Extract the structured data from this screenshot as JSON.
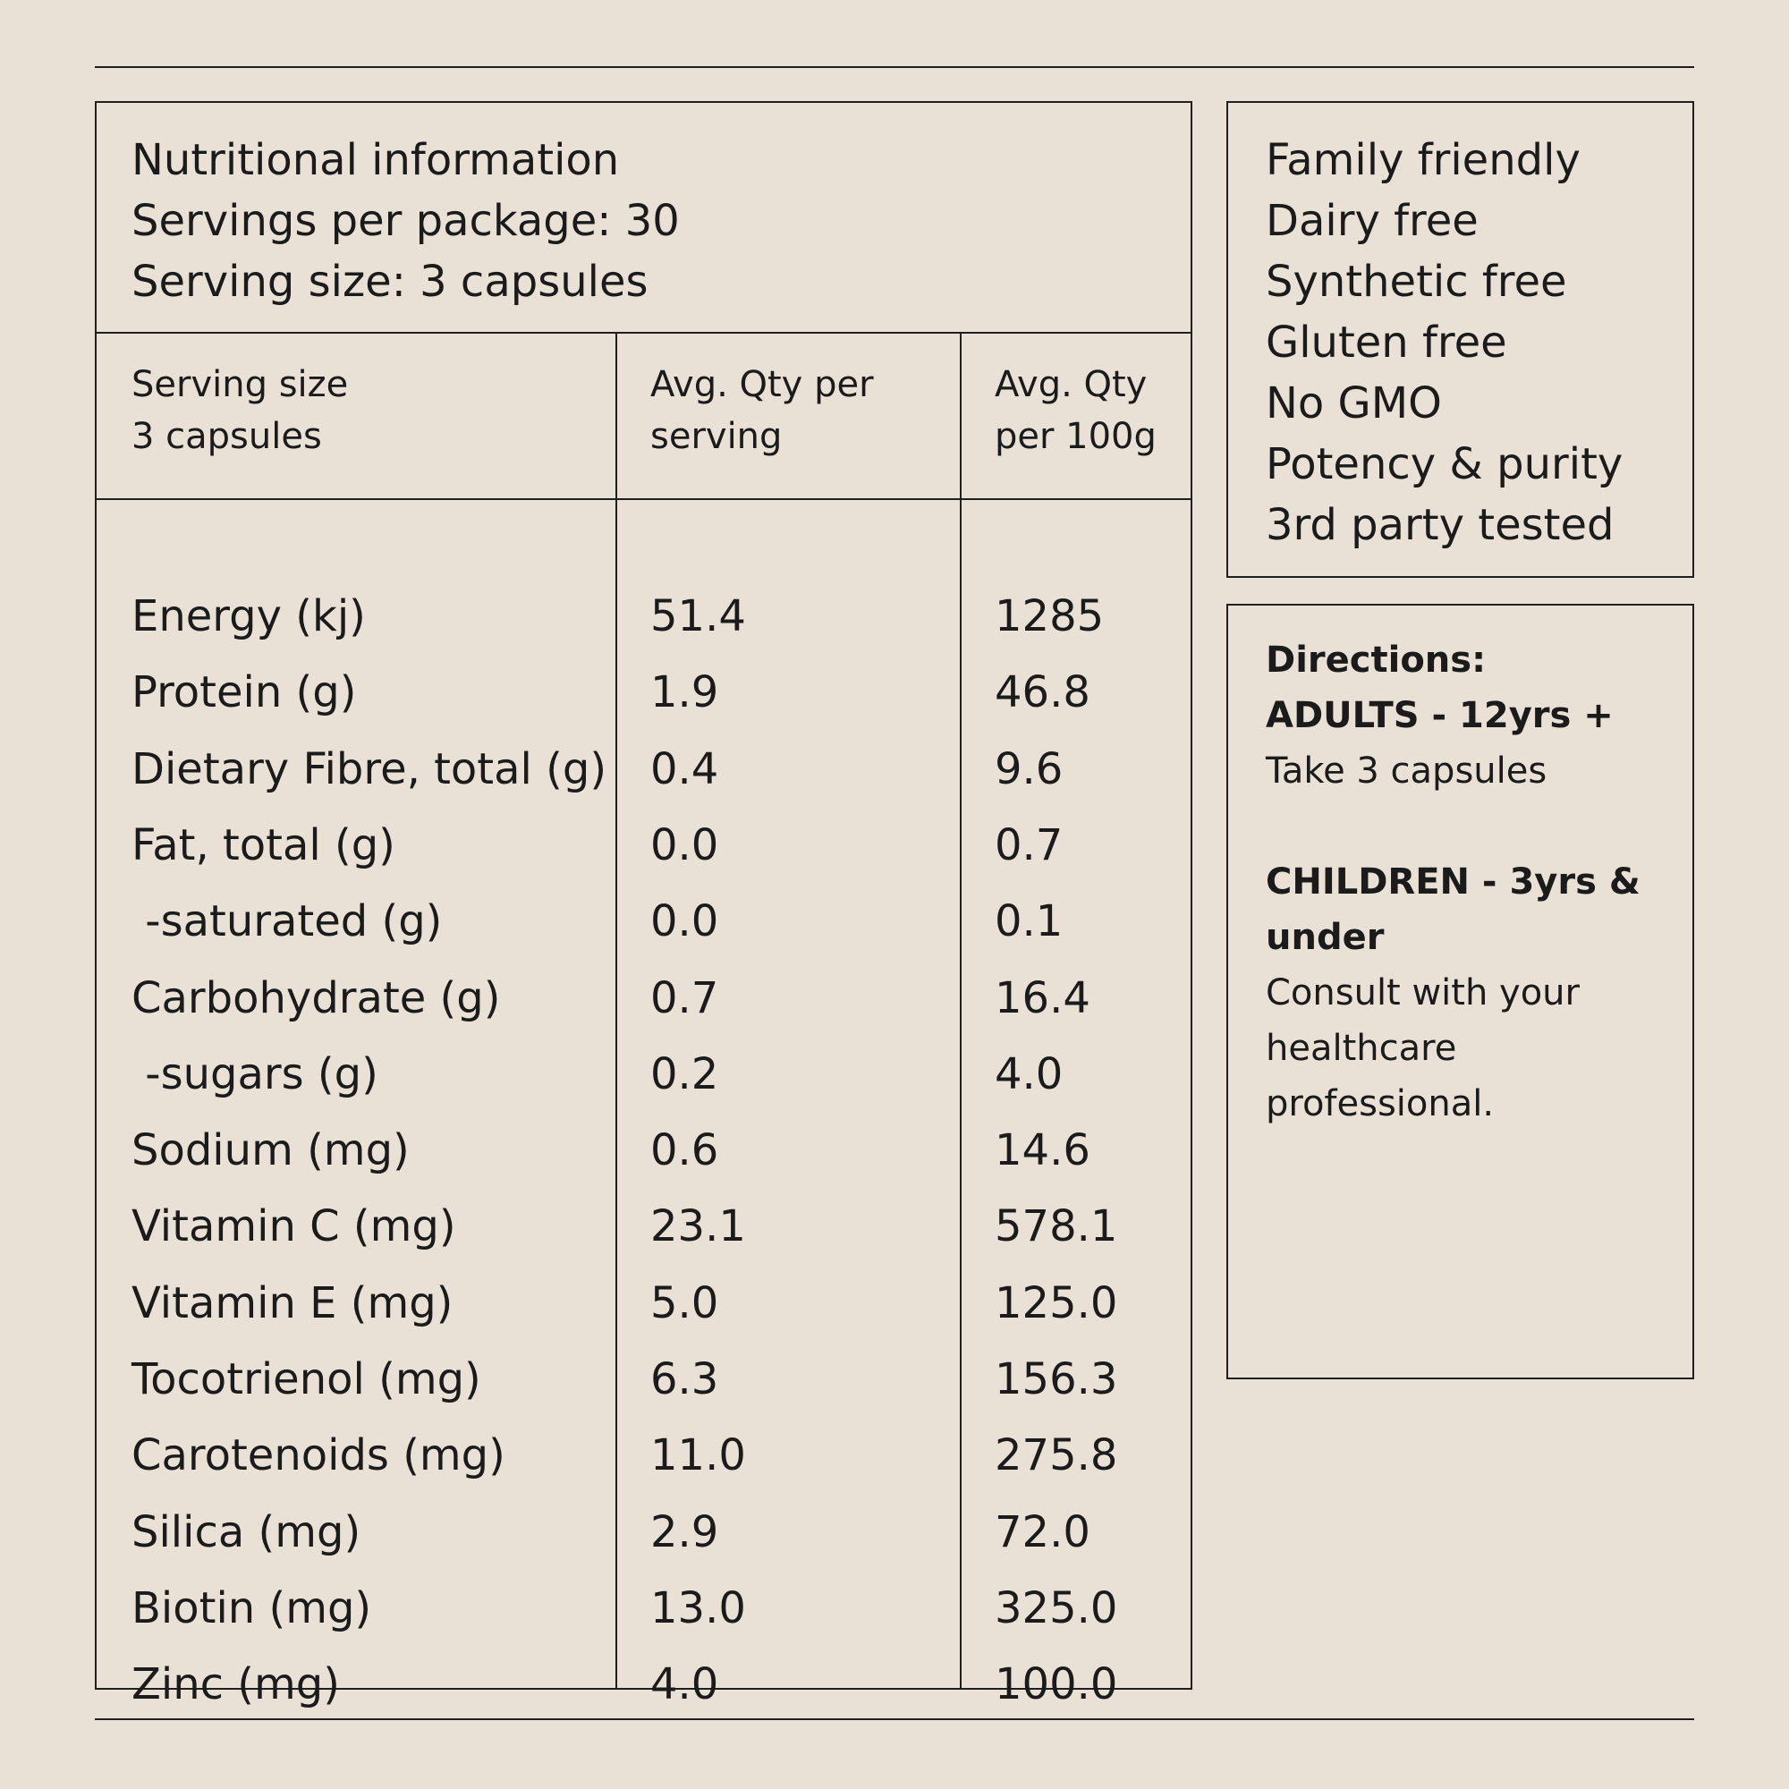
{
  "nutrition": {
    "header_lines": [
      "Nutritional information",
      "Servings per package: 30",
      "Serving size: 3 capsules"
    ],
    "columns": {
      "c1": [
        "Serving size",
        "3 capsules"
      ],
      "c2": [
        "Avg. Qty per",
        "serving"
      ],
      "c3": [
        "Avg. Qty",
        "per 100g"
      ]
    },
    "rows": [
      {
        "name": "Energy (kj)",
        "per_serving": "51.4",
        "per_100g": "1285"
      },
      {
        "name": "Protein (g)",
        "per_serving": "1.9",
        "per_100g": "46.8"
      },
      {
        "name": "Dietary Fibre, total (g)",
        "per_serving": "0.4",
        "per_100g": "9.6"
      },
      {
        "name": "Fat, total (g)",
        "per_serving": "0.0",
        "per_100g": "0.7"
      },
      {
        "name": " -saturated (g)",
        "per_serving": "0.0",
        "per_100g": "0.1"
      },
      {
        "name": "Carbohydrate (g)",
        "per_serving": "0.7",
        "per_100g": "16.4"
      },
      {
        "name": " -sugars (g)",
        "per_serving": "0.2",
        "per_100g": "4.0"
      },
      {
        "name": "Sodium (mg)",
        "per_serving": "0.6",
        "per_100g": "14.6"
      },
      {
        "name": "Vitamin C (mg)",
        "per_serving": "23.1",
        "per_100g": "578.1"
      },
      {
        "name": "Vitamin E (mg)",
        "per_serving": "5.0",
        "per_100g": "125.0"
      },
      {
        "name": "Tocotrienol (mg)",
        "per_serving": "6.3",
        "per_100g": "156.3"
      },
      {
        "name": "Carotenoids (mg)",
        "per_serving": "11.0",
        "per_100g": "275.8"
      },
      {
        "name": "Silica (mg)",
        "per_serving": "2.9",
        "per_100g": "72.0"
      },
      {
        "name": "Biotin (mg)",
        "per_serving": "13.0",
        "per_100g": "325.0"
      },
      {
        "name": "Zinc (mg)",
        "per_serving": "4.0",
        "per_100g": "100.0"
      }
    ]
  },
  "claims": [
    "Family friendly",
    "Dairy free",
    "Synthetic free",
    "Gluten free",
    "No GMO",
    "Potency & purity",
    "3rd party tested"
  ],
  "directions": {
    "title": "Directions:",
    "adults_heading": "ADULTS - 12yrs +",
    "adults_text": "Take 3 capsules",
    "children_heading_lines": [
      "CHILDREN - 3yrs &",
      "under"
    ],
    "children_text_lines": [
      "Consult with your",
      "healthcare",
      "professional."
    ]
  }
}
